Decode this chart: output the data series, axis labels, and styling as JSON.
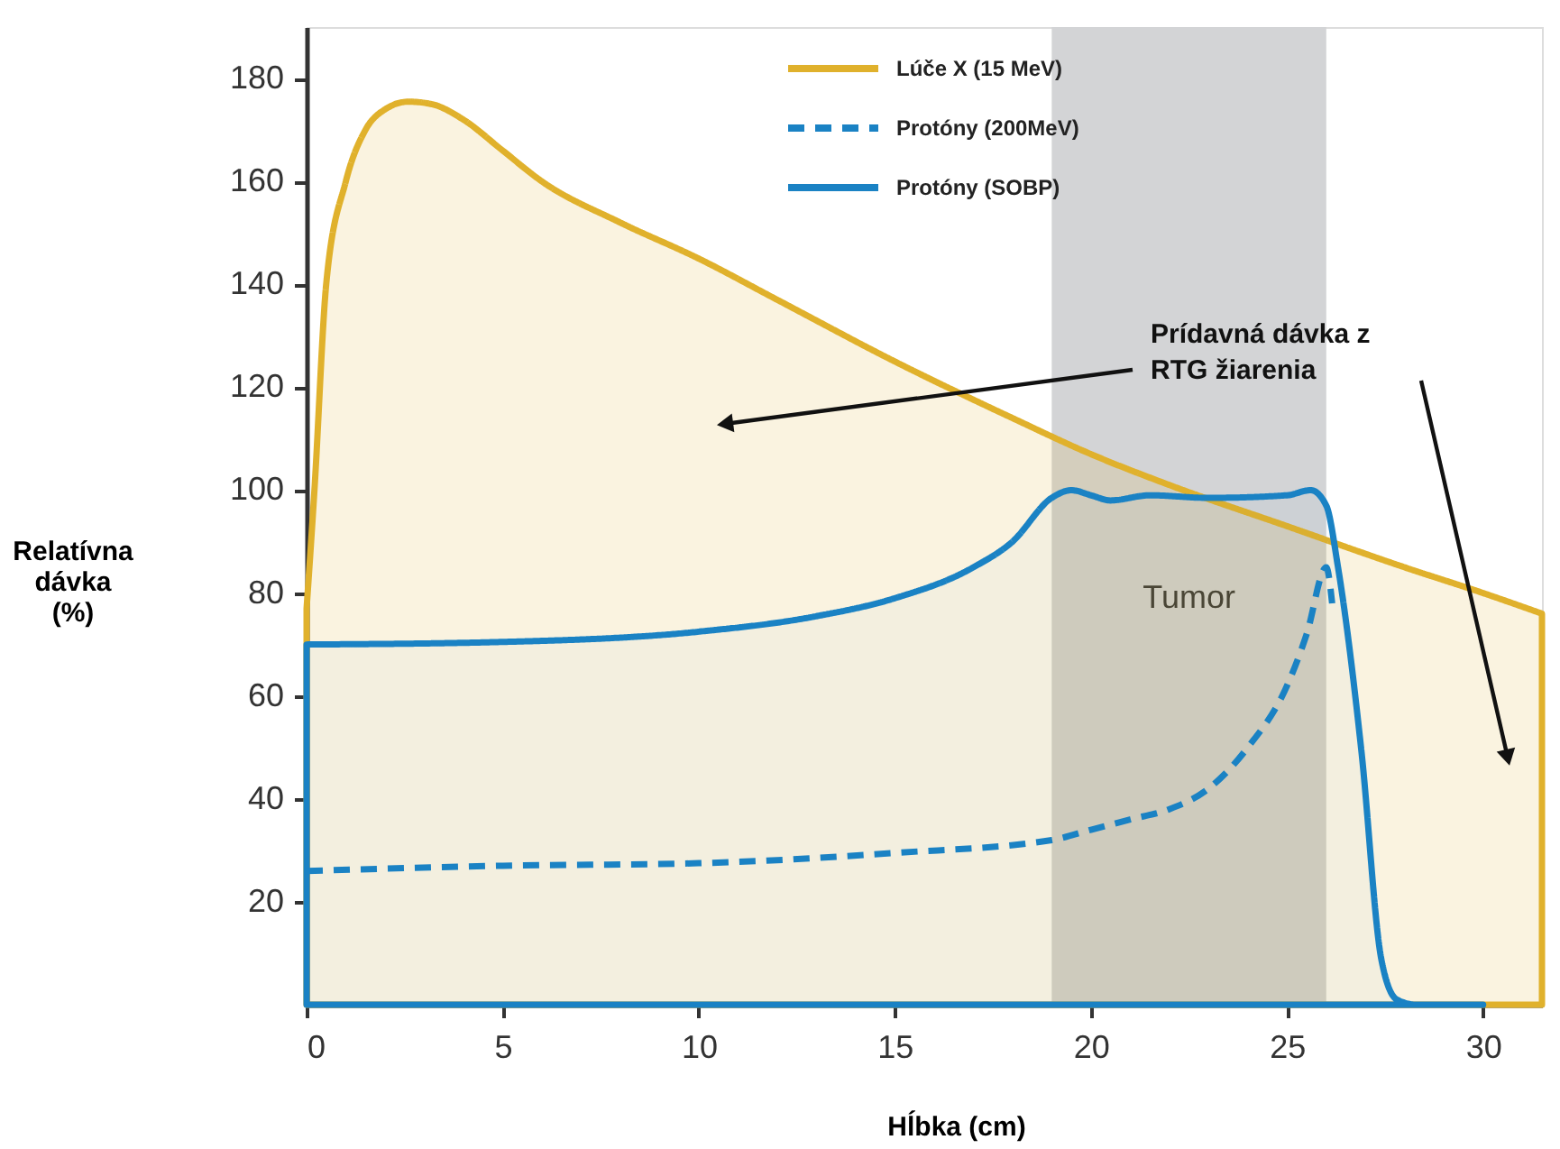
{
  "chart_data": {
    "type": "line",
    "xlabel": "Hĺbka (cm)",
    "ylabel": "Relatívna dávka (%)",
    "xlim": [
      0,
      31.5
    ],
    "ylim": [
      0,
      190
    ],
    "xticks": [
      0,
      5,
      10,
      15,
      20,
      25,
      30
    ],
    "yticks": [
      20,
      40,
      60,
      80,
      100,
      120,
      140,
      160,
      180
    ],
    "grid": false,
    "legend": "top",
    "series": [
      {
        "name": "Lúče X (15 MeV)",
        "type": "area",
        "color": "#e0b12c",
        "line_style": "solid",
        "x": [
          0,
          0.2,
          0.5,
          1,
          1.5,
          2,
          2.6,
          3.2,
          4,
          5,
          6,
          8,
          10,
          12,
          15,
          18,
          20,
          22,
          25,
          28,
          30,
          31.5
        ],
        "values": [
          77,
          100,
          140,
          160,
          170,
          174,
          175.5,
          175,
          172,
          166,
          160,
          152,
          145,
          137,
          125,
          114,
          107,
          101,
          93,
          85,
          80,
          76
        ]
      },
      {
        "name": "Protóny (200MeV)",
        "type": "line",
        "color": "#1a82c4",
        "line_style": "dashed",
        "x": [
          0,
          5,
          10,
          15,
          19,
          20,
          21,
          22,
          23,
          24,
          25,
          25.5,
          26,
          26.15
        ],
        "values": [
          26,
          27,
          27.5,
          29.5,
          32,
          34,
          36,
          38,
          42,
          50,
          62,
          72,
          85,
          78
        ]
      },
      {
        "name": "Protóny (SOBP)",
        "type": "area",
        "color": "#1a82c4",
        "line_style": "solid",
        "x": [
          0,
          5,
          10,
          13,
          15,
          17,
          18,
          19,
          19.5,
          20,
          20.5,
          21.5,
          23,
          25,
          25.6,
          26,
          26.3,
          26.9,
          27.4,
          27.8,
          28.3,
          30
        ],
        "values": [
          70,
          70.5,
          72.5,
          75.5,
          79,
          85,
          90,
          98.5,
          100,
          99,
          98,
          99,
          98.5,
          99,
          100,
          97,
          85,
          49,
          9,
          1,
          0,
          0
        ]
      }
    ],
    "bands": [
      {
        "axis": "x",
        "from": 19,
        "to": 26,
        "label": "Tumor",
        "color": "#d3d4d6"
      }
    ],
    "annotations": [
      "Prídavná dávka z RTG žiarenia"
    ]
  }
}
